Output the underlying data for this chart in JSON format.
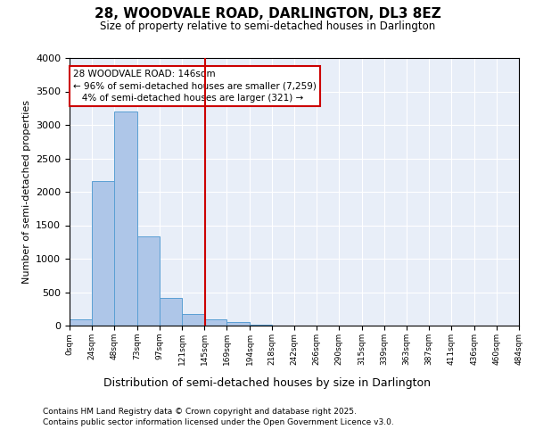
{
  "title": "28, WOODVALE ROAD, DARLINGTON, DL3 8EZ",
  "subtitle": "Size of property relative to semi-detached houses in Darlington",
  "xlabel": "Distribution of semi-detached houses by size in Darlington",
  "ylabel": "Number of semi-detached properties",
  "property_label": "28 WOODVALE ROAD: 146sqm",
  "pct_smaller": 96,
  "count_smaller": 7259,
  "pct_larger": 4,
  "count_larger": 321,
  "bin_edges": [
    0,
    24,
    48,
    73,
    97,
    121,
    145,
    169,
    194,
    218,
    242,
    266,
    290,
    315,
    339,
    363,
    387,
    411,
    436,
    460,
    484
  ],
  "bar_heights": [
    100,
    2160,
    3200,
    1340,
    410,
    175,
    100,
    60,
    20,
    0,
    0,
    0,
    0,
    0,
    0,
    0,
    0,
    0,
    0,
    0
  ],
  "bar_color": "#aec6e8",
  "bar_edge_color": "#5a9fd4",
  "vline_color": "#cc0000",
  "vline_x": 146,
  "background_color": "#e8eef8",
  "ylim": [
    0,
    4000
  ],
  "yticks": [
    0,
    500,
    1000,
    1500,
    2000,
    2500,
    3000,
    3500,
    4000
  ],
  "tick_labels": [
    "0sqm",
    "24sqm",
    "48sqm",
    "73sqm",
    "97sqm",
    "121sqm",
    "145sqm",
    "169sqm",
    "194sqm",
    "218sqm",
    "242sqm",
    "266sqm",
    "290sqm",
    "315sqm",
    "339sqm",
    "363sqm",
    "387sqm",
    "411sqm",
    "436sqm",
    "460sqm",
    "484sqm"
  ],
  "footer_line1": "Contains HM Land Registry data © Crown copyright and database right 2025.",
  "footer_line2": "Contains public sector information licensed under the Open Government Licence v3.0.",
  "annotation_box_color": "#ffffff",
  "annotation_box_edge_color": "#cc0000"
}
